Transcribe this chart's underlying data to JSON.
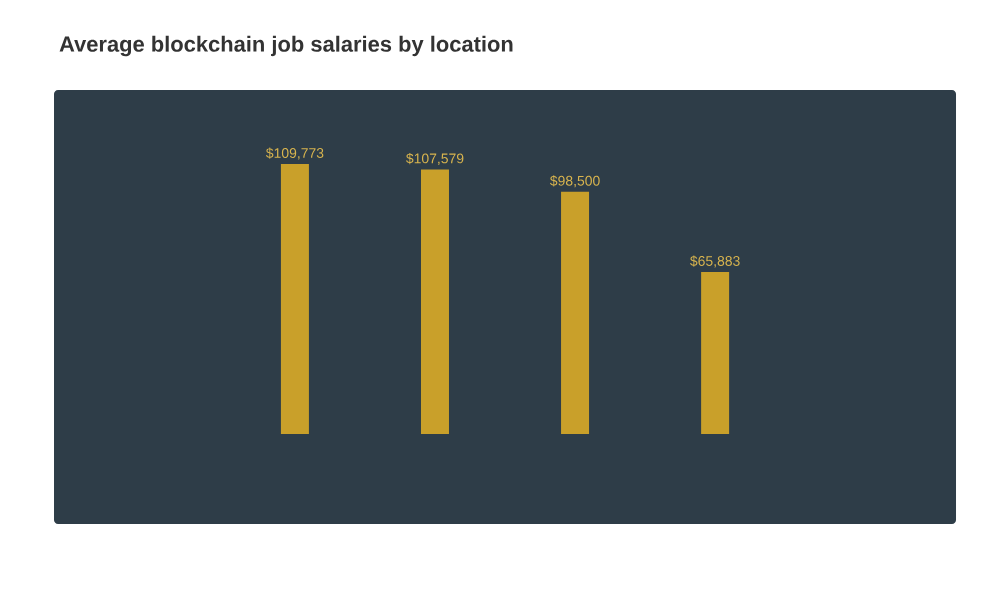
{
  "chart_data": {
    "type": "bar",
    "title": "Average blockchain job salaries by location",
    "categories": [
      null,
      null,
      null,
      null
    ],
    "values": [
      109773,
      107579,
      98500,
      65883
    ],
    "value_labels": [
      "$109,773",
      "$107,579",
      "$98,500",
      "$65,883"
    ],
    "color": "#c9a02a"
  }
}
